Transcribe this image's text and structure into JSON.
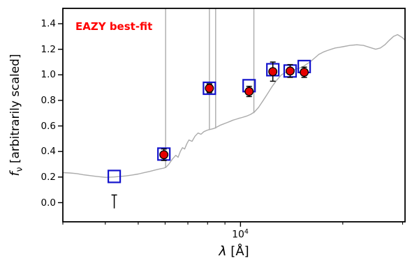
{
  "figure": {
    "background": "#ffffff"
  },
  "chart_data": {
    "type": "line+scatter",
    "annotation": "EAZY best-fit",
    "annotation_color": "#ff0000",
    "xlabel_parts": {
      "symbol": "λ",
      "rest": " [Å]"
    },
    "ylabel_parts": {
      "symbol": "f",
      "subscript": "ν",
      "rest": " [arbitrarily scaled]"
    },
    "xscale": "log",
    "xlim": [
      3000,
      30500
    ],
    "ylim": [
      -0.15,
      1.52
    ],
    "grid": false,
    "xtick_label": {
      "base": "10",
      "exponent": "4",
      "value": 10000
    },
    "xticks_minor": [
      3000,
      4000,
      5000,
      6000,
      7000,
      8000,
      9000,
      20000,
      30000
    ],
    "yticks": {
      "values": [
        0.0,
        0.2,
        0.4,
        0.6,
        0.8,
        1.0,
        1.2,
        1.4
      ],
      "labels": [
        "0.0",
        "0.2",
        "0.4",
        "0.6",
        "0.8",
        "1.0",
        "1.2",
        "1.4"
      ]
    },
    "series": {
      "model_spectrum": {
        "name": "EAZY best-fit model spectrum",
        "color": "#ababab",
        "x": [
          3000,
          3150,
          3300,
          3450,
          3600,
          3750,
          3900,
          4000,
          4100,
          4250,
          4400,
          4600,
          4800,
          5000,
          5200,
          5400,
          5600,
          5800,
          5950,
          6050,
          6150,
          6300,
          6450,
          6550,
          6650,
          6750,
          6850,
          6950,
          7050,
          7200,
          7350,
          7500,
          7650,
          7800,
          7950,
          8050,
          8200,
          8350,
          8500,
          8700,
          8900,
          9100,
          9300,
          9500,
          9700,
          9900,
          10100,
          10400,
          10700,
          11000,
          11300,
          11600,
          12000,
          12400,
          12800,
          13200,
          13600,
          14000,
          14400,
          14800,
          15200,
          15600,
          16000,
          16500,
          17000,
          17300,
          17600,
          18000,
          18500,
          19000,
          19500,
          20000,
          21000,
          22000,
          23000,
          24000,
          25000,
          25800,
          26600,
          27400,
          28200,
          29000,
          30000,
          30500
        ],
        "y": [
          0.235,
          0.232,
          0.227,
          0.218,
          0.212,
          0.206,
          0.201,
          0.198,
          0.199,
          0.201,
          0.204,
          0.209,
          0.216,
          0.224,
          0.234,
          0.244,
          0.255,
          0.264,
          0.27,
          0.28,
          0.3,
          0.34,
          0.37,
          0.355,
          0.4,
          0.43,
          0.42,
          0.46,
          0.49,
          0.48,
          0.52,
          0.545,
          0.535,
          0.555,
          0.565,
          0.57,
          0.575,
          0.58,
          0.59,
          0.605,
          0.615,
          0.625,
          0.635,
          0.645,
          0.652,
          0.66,
          0.666,
          0.676,
          0.69,
          0.71,
          0.745,
          0.79,
          0.85,
          0.91,
          0.96,
          1.0,
          1.02,
          1.03,
          1.04,
          1.05,
          1.06,
          1.08,
          1.1,
          1.13,
          1.16,
          1.17,
          1.18,
          1.19,
          1.2,
          1.21,
          1.215,
          1.22,
          1.23,
          1.235,
          1.23,
          1.215,
          1.2,
          1.21,
          1.235,
          1.27,
          1.3,
          1.315,
          1.29,
          1.27
        ],
        "emission_lines": [
          {
            "x": 6020,
            "y_base": 0.27
          },
          {
            "x": 8100,
            "y_base": 0.57
          },
          {
            "x": 8450,
            "y_base": 0.58
          },
          {
            "x": 10950,
            "y_base": 0.7
          }
        ]
      },
      "model_photometry": {
        "name": "model photometry",
        "marker": "open-square",
        "color": "#1212cc",
        "x": [
          4250,
          5950,
          8100,
          10600,
          12450,
          14000,
          15400
        ],
        "y": [
          0.205,
          0.38,
          0.895,
          0.915,
          1.04,
          1.03,
          1.065
        ]
      },
      "observed_photometry": {
        "name": "observed photometry",
        "marker": "filled-circle",
        "color": "#e60000",
        "edge_color": "#000000",
        "x": [
          5950,
          8100,
          10600,
          12450,
          14000,
          15400
        ],
        "y": [
          0.375,
          0.895,
          0.87,
          1.025,
          1.03,
          1.02
        ],
        "yerr": [
          0.045,
          0.035,
          0.04,
          0.075,
          0.05,
          0.04
        ]
      },
      "nondetection": {
        "name": "non-detection error bar",
        "color": "#000000",
        "x": 4250,
        "y": 0.0,
        "yerr_up": 0.06,
        "yerr_down": 0.045
      }
    }
  }
}
